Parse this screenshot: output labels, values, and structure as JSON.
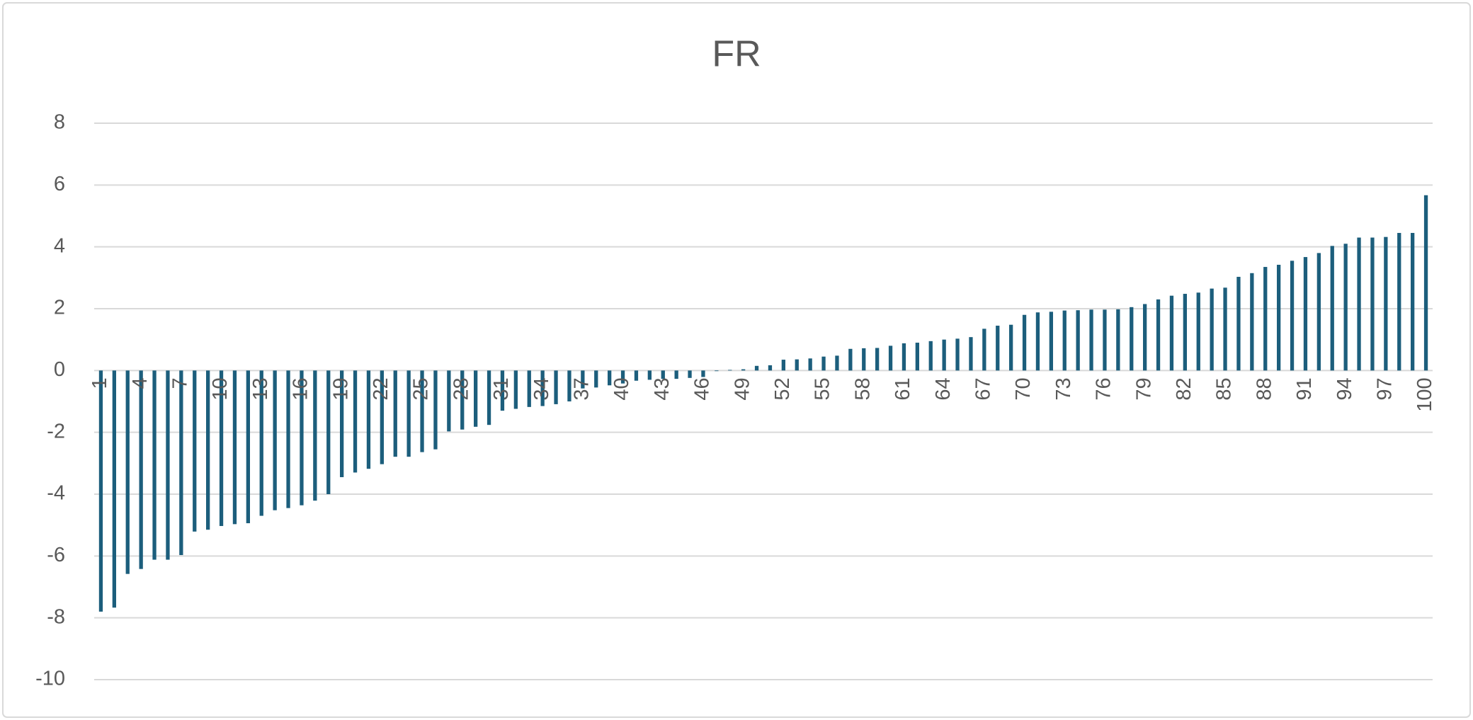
{
  "chart_data": {
    "type": "bar",
    "title": "FR",
    "categories": [
      "1",
      null,
      null,
      "4",
      null,
      null,
      "7",
      null,
      null,
      "10",
      null,
      null,
      "13",
      null,
      null,
      "16",
      null,
      null,
      "19",
      null,
      null,
      "22",
      null,
      null,
      "25",
      null,
      null,
      "28",
      null,
      null,
      "31",
      null,
      null,
      "34",
      null,
      null,
      "37",
      null,
      null,
      "40",
      null,
      null,
      "43",
      null,
      null,
      "46",
      null,
      null,
      "49",
      null,
      null,
      "52",
      null,
      null,
      "55",
      null,
      null,
      "58",
      null,
      null,
      "61",
      null,
      null,
      "64",
      null,
      null,
      "67",
      null,
      null,
      "70",
      null,
      null,
      "73",
      null,
      null,
      "76",
      null,
      null,
      "79",
      null,
      null,
      "82",
      null,
      null,
      "85",
      null,
      null,
      "88",
      null,
      null,
      "91",
      null,
      null,
      "94",
      null,
      null,
      "97",
      null,
      null,
      "100"
    ],
    "values": [
      -7.8,
      -7.67,
      -6.58,
      -6.42,
      -6.12,
      -6.12,
      -5.97,
      -5.21,
      -5.15,
      -5.03,
      -4.97,
      -4.94,
      -4.7,
      -4.52,
      -4.45,
      -4.36,
      -4.21,
      -4.0,
      -3.45,
      -3.3,
      -3.18,
      -3.03,
      -2.79,
      -2.79,
      -2.64,
      -2.55,
      -1.97,
      -1.91,
      -1.82,
      -1.76,
      -1.3,
      -1.24,
      -1.18,
      -1.15,
      -1.09,
      -1.0,
      -0.58,
      -0.55,
      -0.48,
      -0.42,
      -0.33,
      -0.3,
      -0.27,
      -0.27,
      -0.24,
      -0.21,
      -0.02,
      0.02,
      0.04,
      0.15,
      0.17,
      0.35,
      0.36,
      0.39,
      0.45,
      0.48,
      0.7,
      0.72,
      0.73,
      0.8,
      0.88,
      0.9,
      0.95,
      1.0,
      1.03,
      1.08,
      1.35,
      1.45,
      1.48,
      1.8,
      1.88,
      1.9,
      1.94,
      1.95,
      1.97,
      1.97,
      1.98,
      2.05,
      2.15,
      2.3,
      2.42,
      2.48,
      2.52,
      2.65,
      2.68,
      3.03,
      3.15,
      3.35,
      3.42,
      3.55,
      3.67,
      3.8,
      4.03,
      4.1,
      4.3,
      4.3,
      4.32,
      4.45,
      4.45,
      5.67
    ],
    "color": "#1c5e7c",
    "ylim": [
      -10,
      8
    ],
    "yticks": [
      -10,
      -8,
      -6,
      -4,
      -2,
      0,
      2,
      4,
      6,
      8
    ],
    "grid": true
  }
}
